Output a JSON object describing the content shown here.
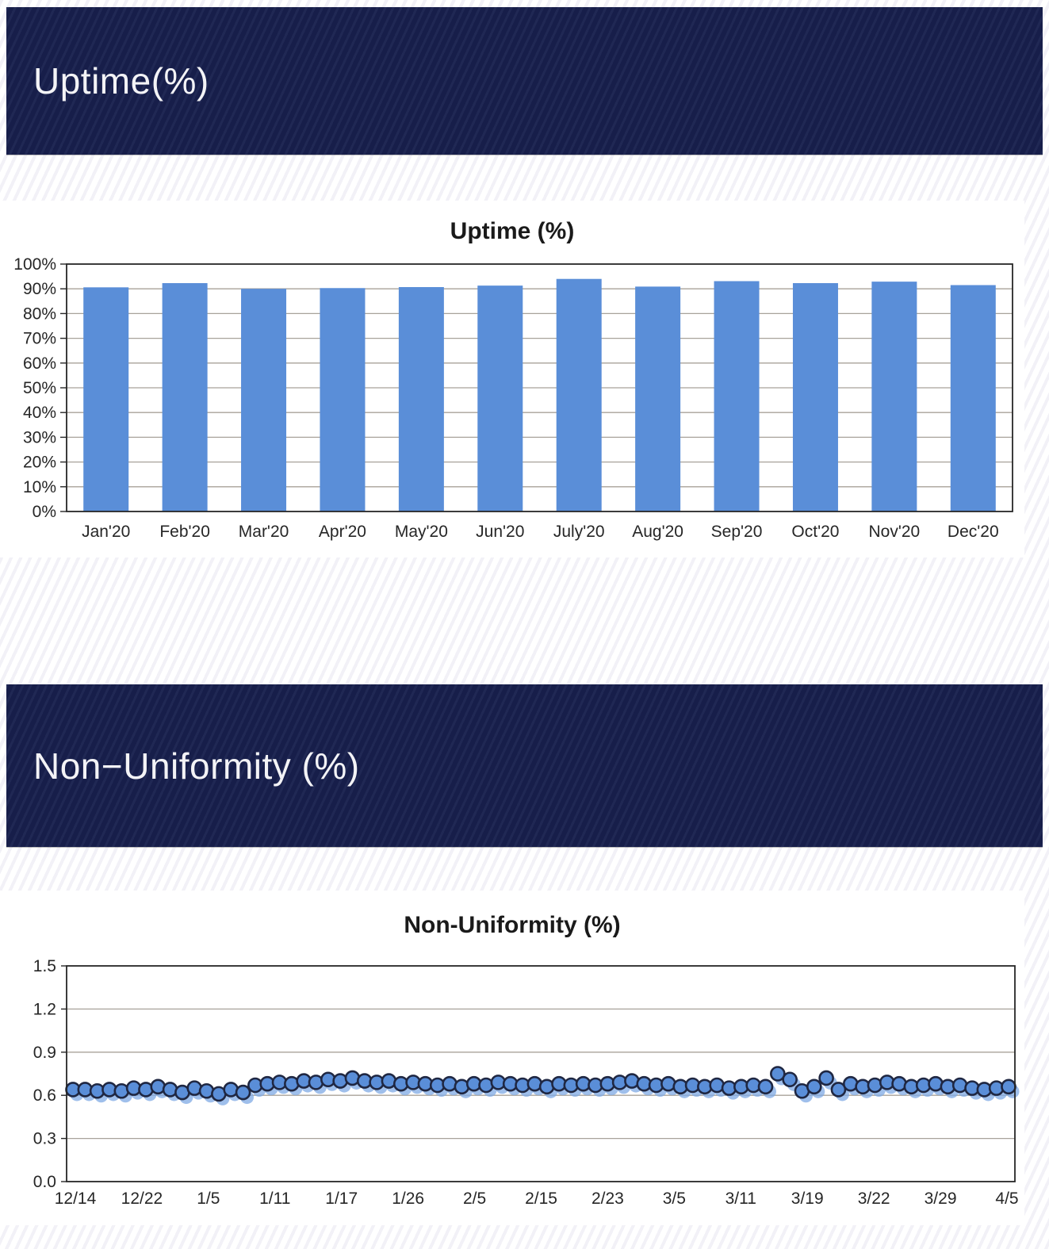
{
  "sections": {
    "uptime": {
      "banner_label": "Uptime(%)"
    },
    "non_uniformity": {
      "banner_label": "Non−Uniformity (%)"
    }
  },
  "colors": {
    "banner_bg": "#18204e",
    "banner_text": "#f3f3f6",
    "bar_fill": "#5a8ed8",
    "marker_fill": "#5a8ed8",
    "marker_ghost": "#7fa9e4",
    "marker_stroke": "#1f2742",
    "gridline": "#a8a29a",
    "axis": "#262626",
    "tick_text": "#262626",
    "panel_bg": "#ffffff"
  },
  "chart_data": [
    {
      "type": "bar",
      "title": "Uptime (%)",
      "xlabel": "",
      "ylabel": "",
      "ylim": [
        0,
        100
      ],
      "ytick_step": 10,
      "ytick_labels": [
        "0%",
        "10%",
        "20%",
        "30%",
        "40%",
        "50%",
        "60%",
        "70%",
        "80%",
        "90%",
        "100%"
      ],
      "grid": true,
      "legend": "none",
      "categories": [
        "Jan'20",
        "Feb'20",
        "Mar'20",
        "Apr'20",
        "May'20",
        "Jun'20",
        "July'20",
        "Aug'20",
        "Sep'20",
        "Oct'20",
        "Nov'20",
        "Dec'20"
      ],
      "values": [
        90.6,
        92.3,
        90.0,
        90.3,
        90.7,
        91.3,
        94.0,
        90.9,
        93.1,
        92.3,
        92.9,
        91.5
      ]
    },
    {
      "type": "scatter",
      "title": "Non-Uniformity (%)",
      "xlabel": "",
      "ylabel": "",
      "ylim": [
        0,
        1.5
      ],
      "ytick_step": 0.3,
      "ytick_labels": [
        "0.0",
        "0.3",
        "0.6",
        "0.9",
        "1.2",
        "1.5"
      ],
      "grid": true,
      "legend": "none",
      "x_tick_labels": [
        "12/14",
        "12/22",
        "1/5",
        "1/11",
        "1/17",
        "1/26",
        "2/5",
        "2/15",
        "2/23",
        "3/5",
        "3/11",
        "3/19",
        "3/22",
        "3/29",
        "4/5"
      ],
      "values": [
        0.64,
        0.64,
        0.63,
        0.64,
        0.63,
        0.65,
        0.64,
        0.66,
        0.64,
        0.62,
        0.65,
        0.63,
        0.61,
        0.64,
        0.62,
        0.67,
        0.68,
        0.69,
        0.68,
        0.7,
        0.69,
        0.71,
        0.7,
        0.72,
        0.7,
        0.69,
        0.7,
        0.68,
        0.69,
        0.68,
        0.67,
        0.68,
        0.66,
        0.68,
        0.67,
        0.69,
        0.68,
        0.67,
        0.68,
        0.66,
        0.68,
        0.67,
        0.68,
        0.67,
        0.68,
        0.69,
        0.7,
        0.68,
        0.67,
        0.68,
        0.66,
        0.67,
        0.66,
        0.67,
        0.65,
        0.66,
        0.67,
        0.66,
        0.75,
        0.71,
        0.63,
        0.66,
        0.72,
        0.64,
        0.68,
        0.66,
        0.67,
        0.69,
        0.68,
        0.66,
        0.67,
        0.68,
        0.66,
        0.67,
        0.65,
        0.64,
        0.65,
        0.66
      ]
    }
  ]
}
